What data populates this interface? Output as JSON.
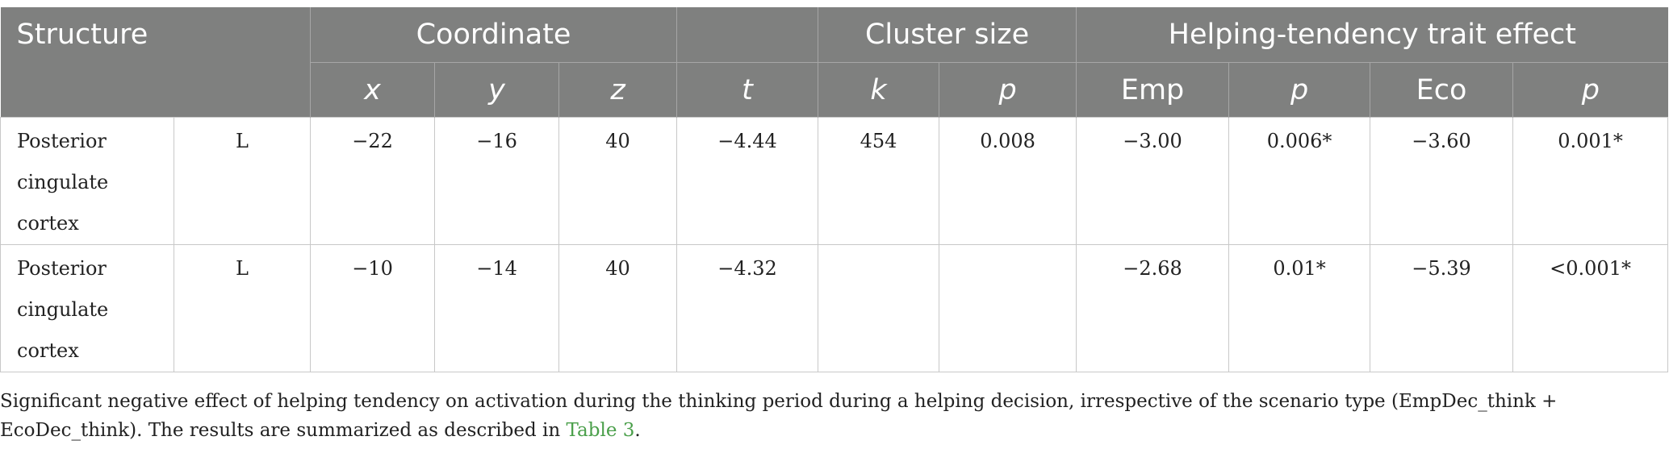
{
  "table": {
    "header": {
      "structure": "Structure",
      "coordinate": "Coordinate",
      "cluster_size": "Cluster size",
      "trait_effect": "Helping-tendency trait effect",
      "columns": [
        "x",
        "y",
        "z",
        "t",
        "k",
        "p",
        "Emp",
        "p",
        "Eco",
        "p"
      ]
    },
    "rows": [
      [
        "Posterior cingulate cortex",
        "L",
        "−22",
        "−16",
        "40",
        "−4.44",
        "454",
        "0.008",
        "−3.00",
        "0.006*",
        "−3.60",
        "0.001*"
      ],
      [
        "Posterior cingulate cortex",
        "L",
        "−10",
        "−14",
        "40",
        "−4.32",
        null,
        null,
        "−2.68",
        "0.01*",
        "−5.39",
        "<0.001*"
      ]
    ]
  },
  "caption": {
    "text": "Significant negative effect of helping tendency on activation during the thinking period during a helping decision, irrespective of the scenario type (EmpDec_think + EcoDec_think). The results are summarized as described in ",
    "link": "Table 3",
    "end": "."
  }
}
